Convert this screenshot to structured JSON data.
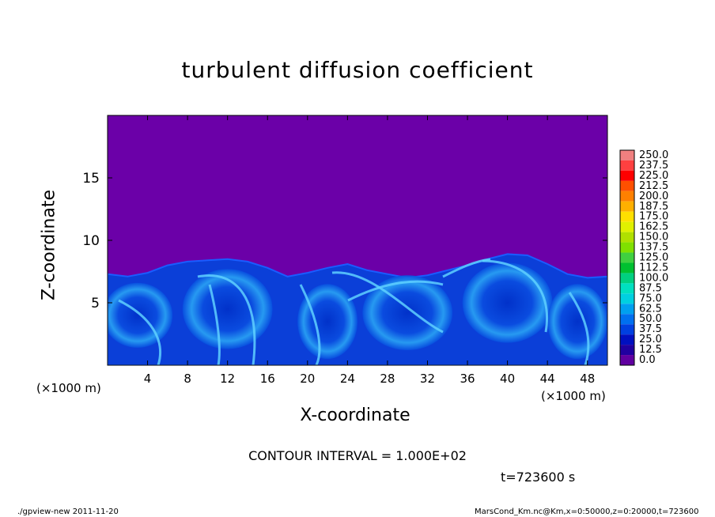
{
  "chart_data": {
    "type": "heatmap",
    "title": "turbulent diffusion coefficient",
    "xlabel": "X-coordinate",
    "ylabel": "Z-coordinate",
    "x_unit": "(×1000 m)",
    "y_unit": "(×1000 m)",
    "xlim": [
      0,
      50
    ],
    "ylim": [
      0,
      20
    ],
    "x_ticks": [
      4,
      8,
      12,
      16,
      20,
      24,
      28,
      32,
      36,
      40,
      44,
      48
    ],
    "y_ticks": [
      5,
      10,
      15
    ],
    "colorbar": {
      "levels": [
        "250.0",
        "237.5",
        "225.0",
        "212.5",
        "200.0",
        "187.5",
        "175.0",
        "162.5",
        "150.0",
        "137.5",
        "125.0",
        "112.5",
        "100.0",
        "87.5",
        "75.0",
        "62.5",
        "50.0",
        "37.5",
        "25.0",
        "12.5",
        "0.0"
      ],
      "colors": [
        "#f08080",
        "#ff4040",
        "#ff0000",
        "#ff5000",
        "#ff8000",
        "#ffb000",
        "#ffe000",
        "#e0f000",
        "#b0e000",
        "#80e000",
        "#40d040",
        "#00c030",
        "#00d080",
        "#00e0c0",
        "#00d0e0",
        "#00a0f0",
        "#0070f0",
        "#0040e0",
        "#0010c0",
        "#2000a0",
        "#6000a0"
      ]
    },
    "background_color": "#6b00a8",
    "turbulent_top_profile": [
      [
        0,
        7.3
      ],
      [
        2,
        7.1
      ],
      [
        4,
        7.4
      ],
      [
        6,
        8.0
      ],
      [
        8,
        8.3
      ],
      [
        10,
        8.4
      ],
      [
        12,
        8.5
      ],
      [
        14,
        8.3
      ],
      [
        16,
        7.8
      ],
      [
        18,
        7.1
      ],
      [
        20,
        7.4
      ],
      [
        22,
        7.8
      ],
      [
        24,
        8.1
      ],
      [
        26,
        7.6
      ],
      [
        28,
        7.3
      ],
      [
        30,
        7.0
      ],
      [
        32,
        7.2
      ],
      [
        34,
        7.6
      ],
      [
        36,
        8.0
      ],
      [
        38,
        8.5
      ],
      [
        40,
        8.9
      ],
      [
        42,
        8.8
      ],
      [
        44,
        8.1
      ],
      [
        46,
        7.3
      ],
      [
        48,
        7.0
      ],
      [
        50,
        7.1
      ]
    ]
  },
  "contour_text": "CONTOUR INTERVAL = 1.000E+02",
  "time_text": "t=723600 s",
  "footer_left": "./gpview-new  2011-11-20",
  "footer_right": "MarsCond_Km.nc@Km,x=0:50000,z=0:20000,t=723600"
}
